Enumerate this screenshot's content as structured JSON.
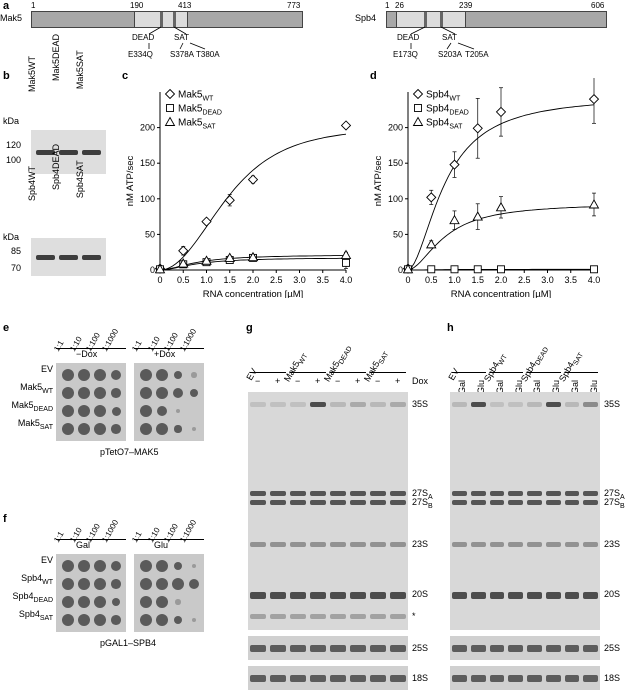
{
  "panel_a": {
    "label": "a",
    "mak5": {
      "name": "Mak5",
      "start": "1",
      "pos1": "190",
      "pos2": "413",
      "end": "773",
      "dead": "DEAD",
      "sat": "SAT",
      "mut1": "E334Q",
      "mut2": "S378A",
      "mut3": "T380A"
    },
    "spb4": {
      "name": "Spb4",
      "start": "1",
      "pos1": "26",
      "pos2": "239",
      "end": "606",
      "dead": "DEAD",
      "sat": "SAT",
      "mut1": "E173Q",
      "mut2": "S203A",
      "mut3": "T205A"
    }
  },
  "panel_b": {
    "label": "b",
    "kda": "kDa",
    "top_lanes": [
      "Mak5WT",
      "Mak5DEAD",
      "Mak5SAT"
    ],
    "top_ticks": [
      "120",
      "100"
    ],
    "bottom_lanes": [
      "Spb4WT",
      "Spb4DEAD",
      "Spb4SAT"
    ],
    "bottom_ticks": [
      "85",
      "70"
    ]
  },
  "panel_c": {
    "label": "c"
  },
  "panel_d": {
    "label": "d"
  },
  "panel_e": {
    "label": "e",
    "dilutions": [
      "1:1",
      "1:10",
      "1:100",
      "1:1000"
    ],
    "conditions": [
      "−Dox",
      "+Dox"
    ],
    "strains": [
      "EV",
      "Mak5WT",
      "Mak5DEAD",
      "Mak5SAT"
    ],
    "caption": "pTetO7–MAK5"
  },
  "panel_f": {
    "label": "f",
    "dilutions": [
      "1:1",
      "1:10",
      "1:100",
      "1:1000"
    ],
    "conditions": [
      "Gal",
      "Glu"
    ],
    "strains": [
      "EV",
      "Spb4WT",
      "Spb4DEAD",
      "Spb4SAT"
    ],
    "caption": "pGAL1–SPB4"
  },
  "panel_g": {
    "label": "g",
    "groups": [
      "EV",
      "Mak5WT",
      "Mak5DEAD",
      "Mak5SAT"
    ],
    "signs": [
      "−",
      "+"
    ],
    "dox": "Dox",
    "bands": [
      "35S",
      "27SA",
      "27SB",
      "23S",
      "20S",
      "*"
    ],
    "bottom": [
      "25S",
      "18S"
    ]
  },
  "panel_h": {
    "label": "h",
    "groups": [
      "EV",
      "Spb4WT",
      "Spb4DEAD",
      "Spb4SAT"
    ],
    "conds": [
      "Gal",
      "Glu"
    ],
    "bands": [
      "35S",
      "27SA",
      "27SB",
      "23S",
      "20S"
    ],
    "bottom": [
      "25S",
      "18S"
    ]
  },
  "chart_data": [
    {
      "type": "scatter",
      "panel": "c",
      "xlabel": "RNA concentration [µM]",
      "ylabel": "nM ATP/sec",
      "xlim": [
        0,
        4.0
      ],
      "ylim": [
        0,
        250
      ],
      "xticks": [
        "0",
        "0.5",
        "1.0",
        "1.5",
        "2.0",
        "2.5",
        "3.0",
        "3.5",
        "4.0"
      ],
      "yticks": [
        "0",
        "50",
        "100",
        "150",
        "200"
      ],
      "legend_position": "top-left",
      "series": [
        {
          "name": "Mak5WT",
          "marker": "diamond",
          "x": [
            0,
            0.5,
            1.0,
            1.5,
            2.0,
            4.0
          ],
          "y": [
            2,
            27,
            68,
            98,
            127,
            203
          ],
          "err": [
            2,
            6,
            4,
            8,
            5,
            3
          ]
        },
        {
          "name": "Mak5DEAD",
          "marker": "square",
          "x": [
            0,
            0.5,
            1.0,
            1.5,
            2.0,
            4.0
          ],
          "y": [
            1,
            8,
            11,
            14,
            17,
            10
          ],
          "err": [
            1,
            2,
            2,
            3,
            3,
            8
          ]
        },
        {
          "name": "Mak5SAT",
          "marker": "triangle",
          "x": [
            0,
            0.5,
            1.0,
            1.5,
            2.0,
            4.0
          ],
          "y": [
            1,
            9,
            13,
            17,
            18,
            21
          ],
          "err": [
            1,
            2,
            2,
            3,
            3,
            4
          ]
        }
      ]
    },
    {
      "type": "scatter",
      "panel": "d",
      "xlabel": "RNA concentration [µM]",
      "ylabel": "nM ATP/sec",
      "xlim": [
        0,
        4.0
      ],
      "ylim": [
        0,
        250
      ],
      "xticks": [
        "0",
        "0.5",
        "1.0",
        "1.5",
        "2.0",
        "2.5",
        "3.0",
        "3.5",
        "4.0"
      ],
      "yticks": [
        "0",
        "50",
        "100",
        "150",
        "200"
      ],
      "legend_position": "top-left",
      "series": [
        {
          "name": "Spb4WT",
          "marker": "diamond",
          "x": [
            0,
            0.5,
            1.0,
            1.5,
            2.0,
            4.0
          ],
          "y": [
            2,
            102,
            148,
            199,
            222,
            240
          ],
          "err": [
            2,
            10,
            18,
            42,
            34,
            34
          ]
        },
        {
          "name": "Spb4DEAD",
          "marker": "square",
          "x": [
            0,
            0.5,
            1.0,
            1.5,
            2.0,
            4.0
          ],
          "y": [
            1,
            1,
            1,
            1,
            1,
            1
          ],
          "err": [
            0,
            0,
            0,
            0,
            0,
            0
          ]
        },
        {
          "name": "Spb4SAT",
          "marker": "triangle",
          "x": [
            0,
            0.5,
            1.0,
            1.5,
            2.0,
            4.0
          ],
          "y": [
            1,
            36,
            70,
            75,
            88,
            92
          ],
          "err": [
            1,
            5,
            13,
            18,
            15,
            16
          ]
        }
      ]
    }
  ]
}
